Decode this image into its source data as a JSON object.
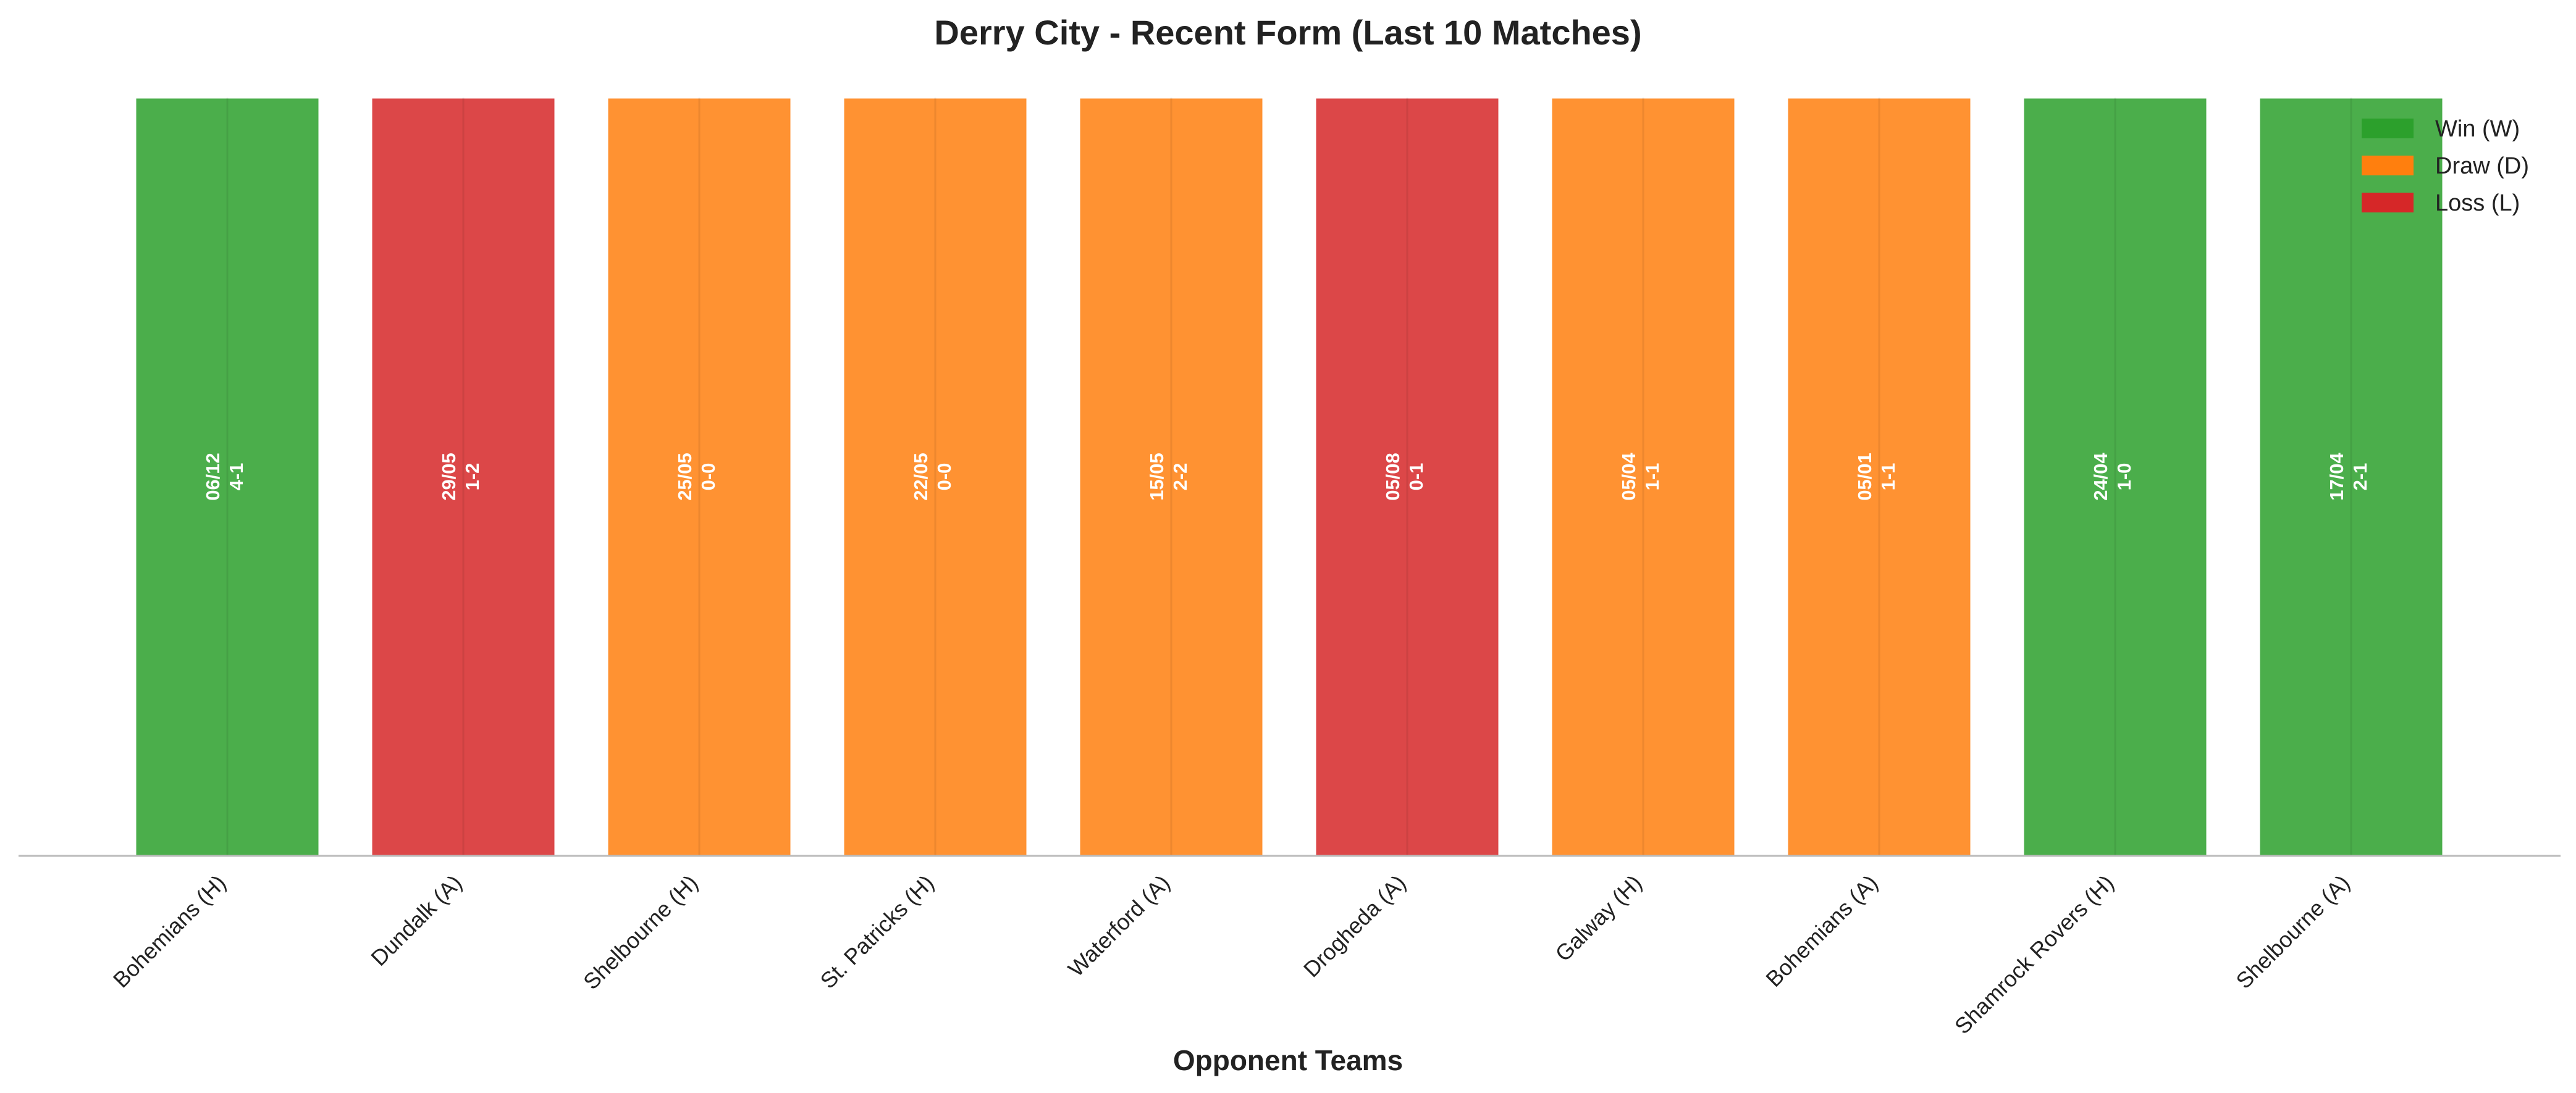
{
  "chart_data": {
    "type": "bar",
    "title": "Derry City - Recent Form (Last 10 Matches)",
    "xlabel": "Opponent Teams",
    "ylabel": "",
    "ylim": [
      0,
      1
    ],
    "grid": false,
    "legend_position": "top-right",
    "categories": [
      "Bohemians (H)",
      "Dundalk (A)",
      "Shelbourne (H)",
      "St. Patricks (H)",
      "Waterford (A)",
      "Drogheda (A)",
      "Galway (H)",
      "Bohemians (A)",
      "Shamrock Rovers (H)",
      "Shelbourne (A)"
    ],
    "values": [
      1,
      1,
      1,
      1,
      1,
      1,
      1,
      1,
      1,
      1
    ],
    "results": [
      "W",
      "L",
      "D",
      "D",
      "D",
      "L",
      "D",
      "D",
      "W",
      "W"
    ],
    "dates": [
      "06/12",
      "29/05",
      "25/05",
      "22/05",
      "15/05",
      "05/08",
      "05/04",
      "05/01",
      "24/04",
      "17/04"
    ],
    "scores": [
      "4-1",
      "1-2",
      "0-0",
      "0-0",
      "2-2",
      "0-1",
      "1-1",
      "1-1",
      "1-0",
      "2-1"
    ],
    "legend": [
      {
        "key": "W",
        "label": "Win (W)",
        "color": "#2ca02c"
      },
      {
        "key": "D",
        "label": "Draw (D)",
        "color": "#ff7f0e"
      },
      {
        "key": "L",
        "label": "Loss (L)",
        "color": "#d62728"
      }
    ]
  }
}
